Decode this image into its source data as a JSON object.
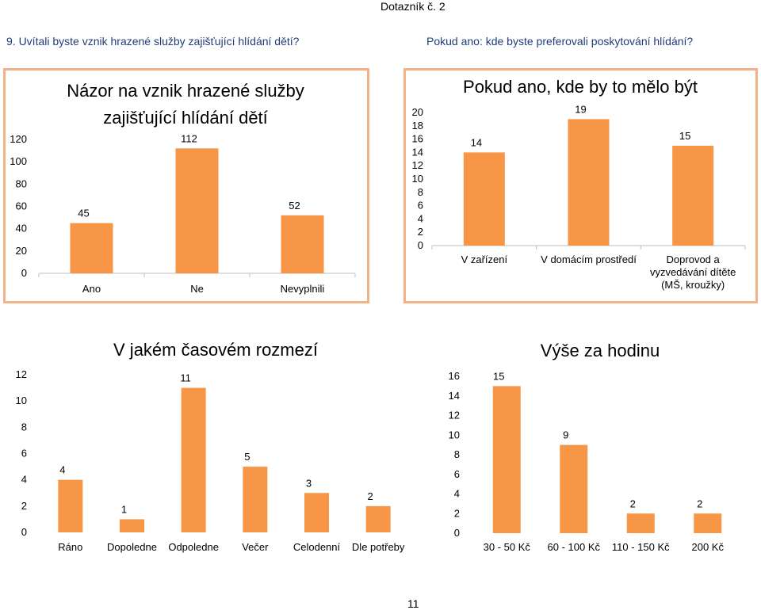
{
  "header": {
    "title": "Dotazník č. 2"
  },
  "questions": {
    "left": "9. Uvítali byste vznik hrazené služby zajišťující hlídání dětí?",
    "right": "Pokud ano: kde byste preferovali poskytování hlídání?"
  },
  "page_number": "11",
  "colors": {
    "bar": "#f79646",
    "panel_border": "#f4b183"
  },
  "chart_data": [
    {
      "type": "bar",
      "title": "Názor na vznik hrazené služby zajišťující hlídání dětí",
      "title_lines": [
        "Názor na vznik hrazené služby",
        "zajišťující hlídání dětí"
      ],
      "categories": [
        "Ano",
        "Ne",
        "Nevyplnili"
      ],
      "category_lines": [
        [
          "Ano"
        ],
        [
          "Ne"
        ],
        [
          "Nevyplnili"
        ]
      ],
      "values": [
        45,
        112,
        52
      ],
      "ylim": [
        0,
        120
      ],
      "yticks": [
        0,
        20,
        40,
        60,
        80,
        100,
        120
      ],
      "xlabel": "",
      "ylabel": "",
      "grid": false
    },
    {
      "type": "bar",
      "title": "Pokud ano, kde by to mělo být",
      "title_lines": [
        "Pokud ano, kde by to mělo být"
      ],
      "categories": [
        "V zařízení",
        "V domácím prostředí",
        "Doprovod a vyzvedávání dítěte (MŠ, kroužky)"
      ],
      "category_lines": [
        [
          "V zařízení"
        ],
        [
          "V domácím prostředí"
        ],
        [
          "Doprovod a",
          "vyzvedávání dítěte",
          "(MŠ, kroužky)"
        ]
      ],
      "values": [
        14,
        19,
        15
      ],
      "ylim": [
        0,
        20
      ],
      "yticks": [
        0,
        2,
        4,
        6,
        8,
        10,
        12,
        14,
        16,
        18,
        20
      ],
      "xlabel": "",
      "ylabel": "",
      "grid": false
    },
    {
      "type": "bar",
      "title": "V jakém časovém rozmezí",
      "title_lines": [
        "V jakém časovém rozmezí"
      ],
      "categories": [
        "Ráno",
        "Dopoledne",
        "Odpoledne",
        "Večer",
        "Celodenní",
        "Dle potřeby"
      ],
      "category_lines": [
        [
          "Ráno"
        ],
        [
          "Dopoledne"
        ],
        [
          "Odpoledne"
        ],
        [
          "Večer"
        ],
        [
          "Celodenní"
        ],
        [
          "Dle potřeby"
        ]
      ],
      "values": [
        4,
        1,
        11,
        5,
        3,
        2
      ],
      "ylim": [
        0,
        12
      ],
      "yticks": [
        0,
        2,
        4,
        6,
        8,
        10,
        12
      ],
      "xlabel": "",
      "ylabel": "",
      "grid": false
    },
    {
      "type": "bar",
      "title": "Výše za hodinu",
      "title_lines": [
        "Výše za hodinu"
      ],
      "categories": [
        "30 - 50 Kč",
        "60 - 100 Kč",
        "110 - 150 Kč",
        "200 Kč"
      ],
      "category_lines": [
        [
          "30 - 50 Kč"
        ],
        [
          "60 - 100 Kč"
        ],
        [
          "110 - 150 Kč"
        ],
        [
          "200 Kč"
        ]
      ],
      "values": [
        15,
        9,
        2,
        2
      ],
      "ylim": [
        0,
        16
      ],
      "yticks": [
        0,
        2,
        4,
        6,
        8,
        10,
        12,
        14,
        16
      ],
      "xlabel": "",
      "ylabel": "",
      "grid": false
    }
  ]
}
